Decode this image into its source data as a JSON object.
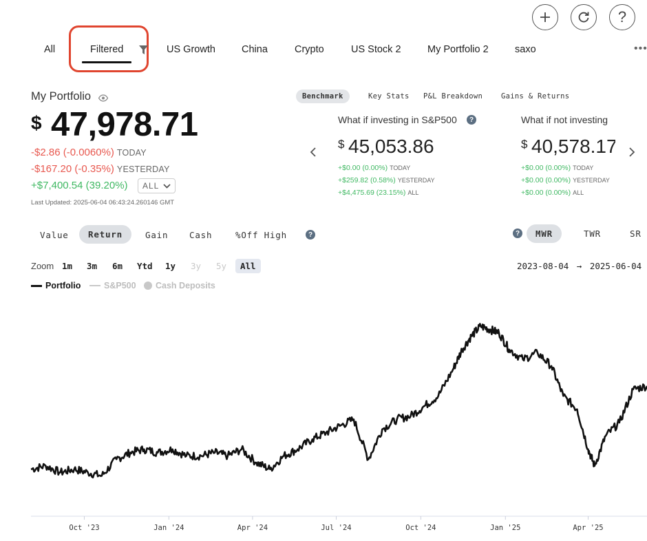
{
  "top_actions": {
    "add_icon": "plus-icon",
    "refresh_icon": "refresh-icon",
    "help_icon": "question-icon",
    "help_glyph": "?"
  },
  "tabs": [
    {
      "label": "All"
    },
    {
      "label": "Filtered",
      "active": true
    },
    {
      "label": "US Growth"
    },
    {
      "label": "China"
    },
    {
      "label": "Crypto"
    },
    {
      "label": "US Stock 2"
    },
    {
      "label": "My Portfolio 2"
    },
    {
      "label": "saxo"
    }
  ],
  "more_label": "•••",
  "portfolio": {
    "title": "My Portfolio",
    "currency": "$",
    "value": "47,978.71",
    "today_change": "-$2.86 (-0.0060%)",
    "today_label": "TODAY",
    "yesterday_change": "-$167.20 (-0.35%)",
    "yesterday_label": "YESTERDAY",
    "all_change": "+$7,400.54 (39.20%)",
    "all_select": "ALL",
    "last_updated": "Last Updated: 2025-06-04 06:43:24.260146 GMT"
  },
  "benchmark_tabs": [
    "Benchmark",
    "Key Stats",
    "P&L Breakdown",
    "Gains & Returns"
  ],
  "cards": [
    {
      "title": "What if investing in S&P500",
      "currency": "$",
      "value": "45,053.86",
      "today": "+$0.00 (0.00%)",
      "today_label": "TODAY",
      "yesterday": "+$259.82 (0.58%)",
      "yesterday_label": "YESTERDAY",
      "all": "+$4,475.69 (23.15%)",
      "all_label": "ALL"
    },
    {
      "title": "What if not investing",
      "currency": "$",
      "value": "40,578.17",
      "today": "+$0.00 (0.00%)",
      "today_label": "TODAY",
      "yesterday": "+$0.00 (0.00%)",
      "yesterday_label": "YESTERDAY",
      "all": "+$0.00 (0.00%)",
      "all_label": "ALL"
    }
  ],
  "metric_tabs": [
    "Value",
    "Return",
    "Gain",
    "Cash",
    "%Off High"
  ],
  "metric_active": "Return",
  "return_types": [
    "MWR",
    "TWR",
    "SR"
  ],
  "zoom": {
    "label": "Zoom",
    "options": [
      "1m",
      "3m",
      "6m",
      "Ytd",
      "1y",
      "3y",
      "5y",
      "All"
    ],
    "disabled": [
      "3y",
      "5y"
    ],
    "active": "All"
  },
  "date_range": {
    "start": "2023-08-04",
    "arrow": "→",
    "end": "2025-06-04"
  },
  "colors": {
    "portfolio": "#111111",
    "sp500": "#c8c8c8",
    "cash": "#c8c8c8",
    "negative": "#e8584f",
    "positive": "#3fb862",
    "highlight": "#e0452f"
  },
  "chart_data": {
    "type": "line",
    "legend": [
      "Portfolio",
      "S&P500",
      "Cash Deposits"
    ],
    "x_ticks": [
      "Oct '23",
      "Jan '24",
      "Apr '24",
      "Jul '24",
      "Oct '24",
      "Jan '25",
      "Apr '25"
    ],
    "series": [
      {
        "name": "Portfolio",
        "x": [
          "2023-08-04",
          "2023-08-20",
          "2023-09-05",
          "2023-09-20",
          "2023-10-05",
          "2023-10-20",
          "2023-11-05",
          "2023-11-20",
          "2023-12-05",
          "2023-12-20",
          "2024-01-05",
          "2024-01-20",
          "2024-02-05",
          "2024-02-20",
          "2024-03-05",
          "2024-03-20",
          "2024-04-05",
          "2024-04-20",
          "2024-05-05",
          "2024-05-20",
          "2024-06-05",
          "2024-06-20",
          "2024-07-05",
          "2024-07-20",
          "2024-08-05",
          "2024-08-20",
          "2024-09-05",
          "2024-09-20",
          "2024-10-05",
          "2024-10-20",
          "2024-11-05",
          "2024-11-15",
          "2024-11-25",
          "2024-12-05",
          "2024-12-15",
          "2024-12-25",
          "2025-01-05",
          "2025-01-20",
          "2025-02-05",
          "2025-02-20",
          "2025-03-05",
          "2025-03-20",
          "2025-04-01",
          "2025-04-08",
          "2025-04-20",
          "2025-05-05",
          "2025-05-20",
          "2025-06-04"
        ],
        "y": [
          0.1,
          0.11,
          0.09,
          0.1,
          0.09,
          0.08,
          0.13,
          0.15,
          0.16,
          0.15,
          0.16,
          0.14,
          0.14,
          0.15,
          0.14,
          0.16,
          0.12,
          0.1,
          0.14,
          0.16,
          0.19,
          0.21,
          0.23,
          0.25,
          0.13,
          0.22,
          0.25,
          0.26,
          0.29,
          0.32,
          0.4,
          0.46,
          0.5,
          0.53,
          0.52,
          0.51,
          0.46,
          0.43,
          0.45,
          0.41,
          0.32,
          0.28,
          0.16,
          0.11,
          0.2,
          0.24,
          0.34,
          0.35
        ]
      }
    ]
  }
}
